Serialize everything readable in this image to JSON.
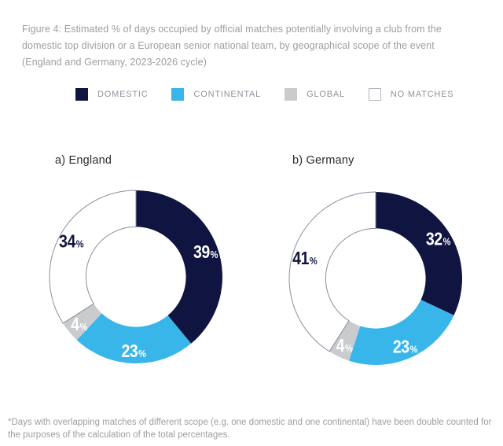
{
  "caption": {
    "line1": "Figure 4: Estimated % of days occupied by official matches potentially involving a club from the domestic top division or a European senior national team, by geographical scope of the event",
    "line2": "(England and Germany, 2023-2026 cycle)"
  },
  "legend": {
    "items": [
      {
        "label": "DOMESTIC",
        "color": "#101440",
        "border": "#101440"
      },
      {
        "label": "CONTINENTAL",
        "color": "#38b6ea",
        "border": "#38b6ea"
      },
      {
        "label": "GLOBAL",
        "color": "#c9cbcd",
        "border": "#c9cbcd"
      },
      {
        "label": "NO MATCHES",
        "color": "#ffffff",
        "border": "#b0b4bb"
      }
    ]
  },
  "chart_data": {
    "type": "donut",
    "unit": "%",
    "direction": "clockwise",
    "start_angle_deg": 0,
    "inner_radius_ratio": 0.578,
    "outer_radius_px": 110,
    "label_radius_ratio": 0.855,
    "categories": [
      "DOMESTIC",
      "CONTINENTAL",
      "GLOBAL",
      "NO MATCHES"
    ],
    "colors": [
      "#101440",
      "#38b6ea",
      "#c9cbcd",
      "#ffffff"
    ],
    "label_colors": [
      "#ffffff",
      "#ffffff",
      "#ffffff",
      "#12163d"
    ],
    "white_slice_outline": "#8a8fa0",
    "charts": [
      {
        "title": "a) England",
        "values": [
          39,
          23,
          4,
          34
        ],
        "labels": [
          "39%",
          "23%",
          "4%",
          "34%"
        ]
      },
      {
        "title": "b) Germany",
        "values": [
          32,
          23,
          4,
          41
        ],
        "labels": [
          "32%",
          "23%",
          "4%",
          "41%"
        ]
      }
    ]
  },
  "footnote": "*Days with overlapping matches of different scope (e.g. one domestic and one continental) have been double counted for the purposes of the calculation of the total percentages."
}
